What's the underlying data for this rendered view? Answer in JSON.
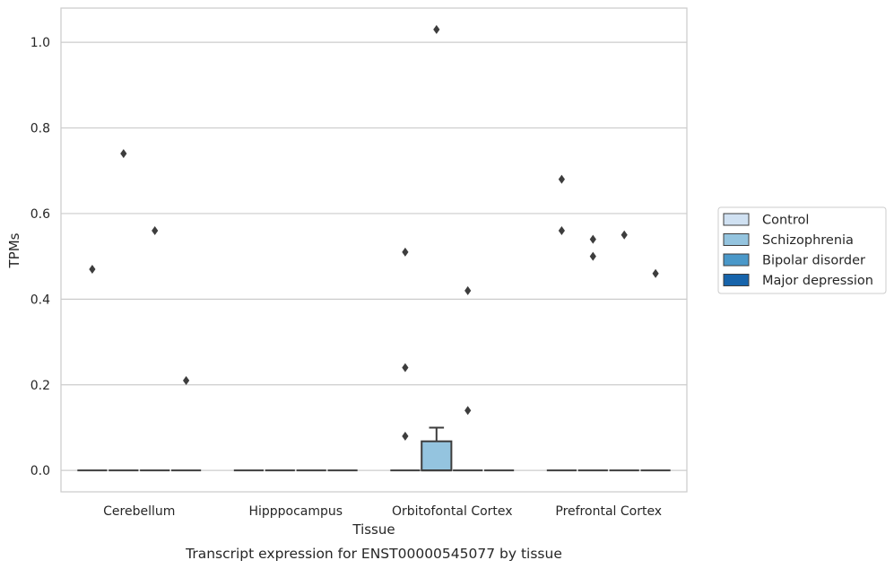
{
  "caption": "Transcript expression for ENST00000545077 by tissue",
  "chart_data": {
    "type": "box",
    "xlabel": "Tissue",
    "ylabel": "TPMs",
    "ylim": [
      -0.05,
      1.08
    ],
    "yticks": [
      0.0,
      0.2,
      0.4,
      0.6,
      0.8,
      1.0
    ],
    "ytick_labels": [
      "0.0",
      "0.2",
      "0.4",
      "0.6",
      "0.8",
      "1.0"
    ],
    "grid": true,
    "legend_position": "right",
    "categories": [
      "Cerebellum",
      "Hipppocampus",
      "Orbitofontal Cortex",
      "Prefrontal Cortex"
    ],
    "series": [
      {
        "name": "Control",
        "color": "#d0e1f2"
      },
      {
        "name": "Schizophrenia",
        "color": "#94c4df"
      },
      {
        "name": "Bipolar disorder",
        "color": "#4a98c9"
      },
      {
        "name": "Major depression",
        "color": "#1764ab"
      }
    ],
    "boxes": [
      {
        "category": 0,
        "series": 0,
        "q1": 0,
        "median": 0,
        "q3": 0,
        "whisker_low": 0,
        "whisker_high": 0,
        "outliers": [
          0.47
        ]
      },
      {
        "category": 0,
        "series": 1,
        "q1": 0,
        "median": 0,
        "q3": 0,
        "whisker_low": 0,
        "whisker_high": 0,
        "outliers": [
          0.74
        ]
      },
      {
        "category": 0,
        "series": 2,
        "q1": 0,
        "median": 0,
        "q3": 0,
        "whisker_low": 0,
        "whisker_high": 0,
        "outliers": [
          0.56
        ]
      },
      {
        "category": 0,
        "series": 3,
        "q1": 0,
        "median": 0,
        "q3": 0,
        "whisker_low": 0,
        "whisker_high": 0,
        "outliers": [
          0.21
        ]
      },
      {
        "category": 1,
        "series": 0,
        "q1": 0,
        "median": 0,
        "q3": 0,
        "whisker_low": 0,
        "whisker_high": 0,
        "outliers": []
      },
      {
        "category": 1,
        "series": 1,
        "q1": 0,
        "median": 0,
        "q3": 0,
        "whisker_low": 0,
        "whisker_high": 0,
        "outliers": []
      },
      {
        "category": 1,
        "series": 2,
        "q1": 0,
        "median": 0,
        "q3": 0,
        "whisker_low": 0,
        "whisker_high": 0,
        "outliers": []
      },
      {
        "category": 1,
        "series": 3,
        "q1": 0,
        "median": 0,
        "q3": 0,
        "whisker_low": 0,
        "whisker_high": 0,
        "outliers": []
      },
      {
        "category": 2,
        "series": 0,
        "q1": 0,
        "median": 0,
        "q3": 0,
        "whisker_low": 0,
        "whisker_high": 0,
        "outliers": [
          0.51,
          0.24,
          0.08
        ]
      },
      {
        "category": 2,
        "series": 1,
        "q1": 0,
        "median": 0,
        "q3": 0.068,
        "whisker_low": 0,
        "whisker_high": 0.1,
        "outliers": [
          1.03
        ]
      },
      {
        "category": 2,
        "series": 2,
        "q1": 0,
        "median": 0,
        "q3": 0,
        "whisker_low": 0,
        "whisker_high": 0,
        "outliers": [
          0.42,
          0.14
        ]
      },
      {
        "category": 2,
        "series": 3,
        "q1": 0,
        "median": 0,
        "q3": 0,
        "whisker_low": 0,
        "whisker_high": 0,
        "outliers": []
      },
      {
        "category": 3,
        "series": 0,
        "q1": 0,
        "median": 0,
        "q3": 0,
        "whisker_low": 0,
        "whisker_high": 0,
        "outliers": [
          0.68,
          0.56
        ]
      },
      {
        "category": 3,
        "series": 1,
        "q1": 0,
        "median": 0,
        "q3": 0,
        "whisker_low": 0,
        "whisker_high": 0,
        "outliers": [
          0.54,
          0.5
        ]
      },
      {
        "category": 3,
        "series": 2,
        "q1": 0,
        "median": 0,
        "q3": 0,
        "whisker_low": 0,
        "whisker_high": 0,
        "outliers": [
          0.55
        ]
      },
      {
        "category": 3,
        "series": 3,
        "q1": 0,
        "median": 0,
        "q3": 0,
        "whisker_low": 0,
        "whisker_high": 0,
        "outliers": [
          0.46
        ]
      }
    ]
  }
}
